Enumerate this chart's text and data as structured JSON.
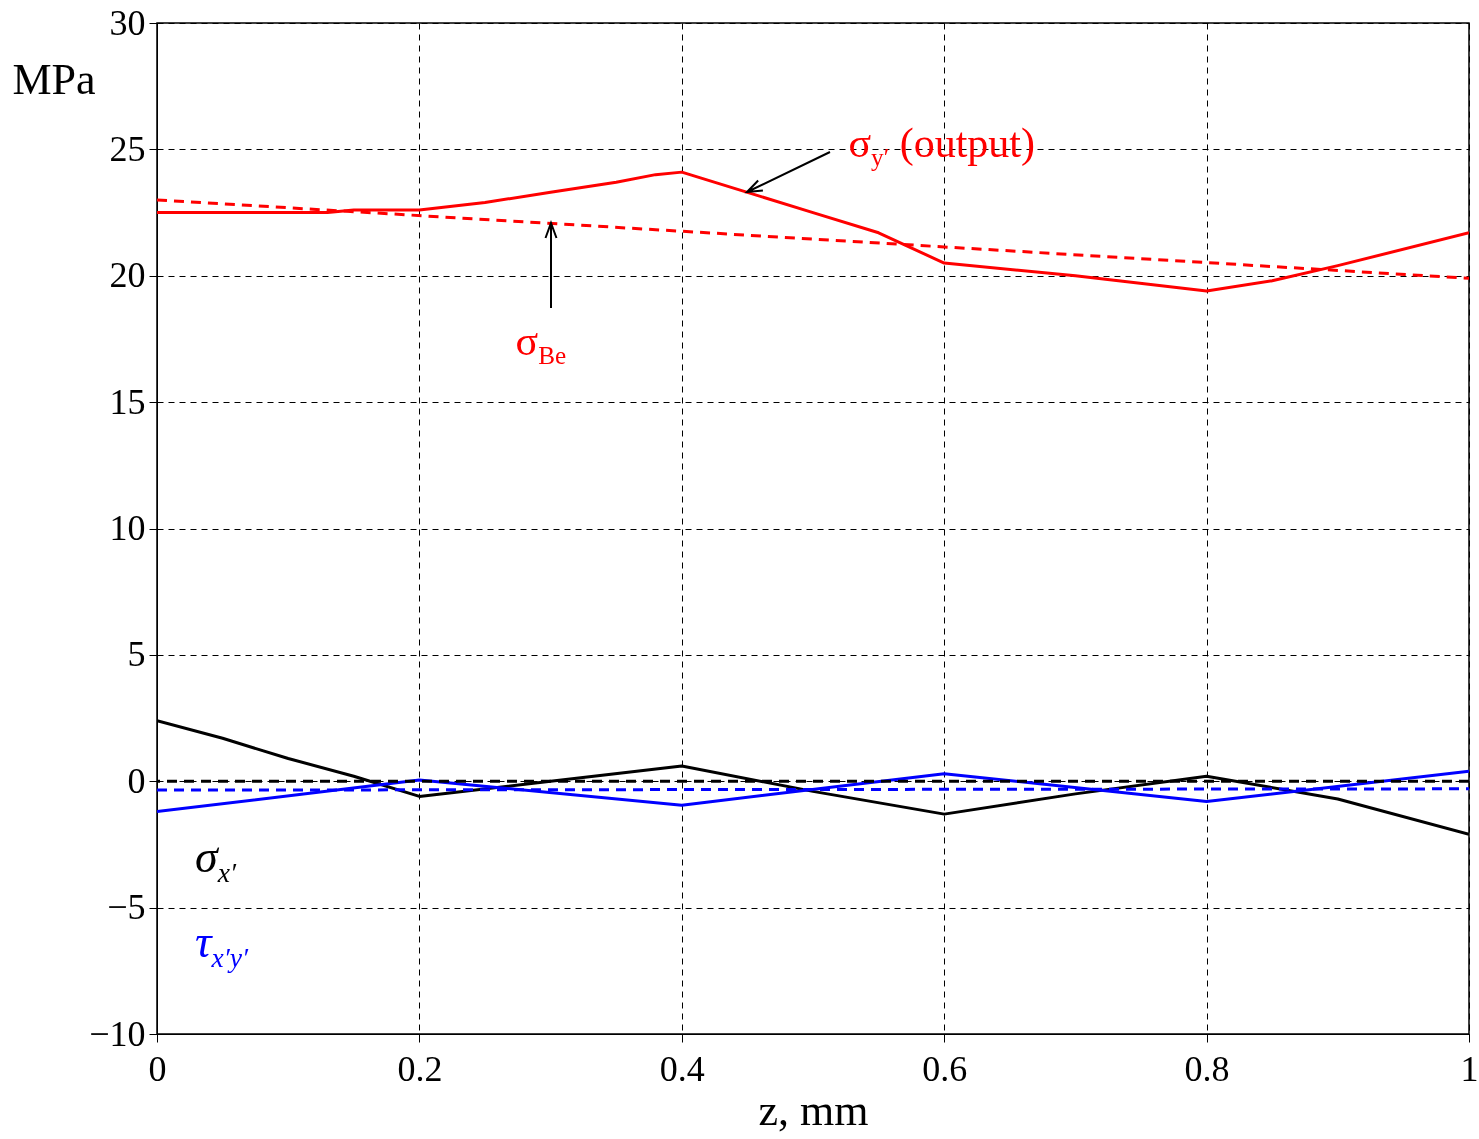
{
  "chart_data": {
    "type": "line",
    "xlabel": "z, mm",
    "ylabel": "MPa",
    "xlim": [
      0,
      1
    ],
    "xticks": [
      0,
      0.2,
      0.4,
      0.6,
      0.8,
      1
    ],
    "ylim": [
      -10,
      30
    ],
    "yticks": [
      -10,
      -5,
      0,
      5,
      10,
      15,
      20,
      25,
      30
    ],
    "grid": true,
    "legend": "bottom left",
    "marker": "none",
    "series": [
      {
        "color": "#ff0000",
        "line_style": "solid",
        "x": [
          0,
          0.05,
          0.1,
          0.13,
          0.15,
          0.2,
          0.25,
          0.3,
          0.35,
          0.38,
          0.4,
          0.5,
          0.55,
          0.6,
          0.7,
          0.8,
          0.85,
          0.9,
          1
        ],
        "values": [
          22.5,
          22.5,
          22.5,
          22.5,
          22.6,
          22.6,
          22.9,
          23.3,
          23.7,
          24.0,
          24.1,
          22.5,
          21.7,
          20.5,
          20.0,
          19.4,
          19.8,
          20.4,
          21.7
        ]
      },
      {
        "color": "#ff0000",
        "line_style": "dashed",
        "x": [
          0,
          1
        ],
        "values": [
          23.0,
          19.9
        ]
      },
      {
        "name": "σ$_{x′}$",
        "color": "#000000",
        "line_style": "solid",
        "x": [
          0,
          0.05,
          0.1,
          0.15,
          0.2,
          0.3,
          0.4,
          0.5,
          0.6,
          0.7,
          0.8,
          0.9,
          1
        ],
        "values": [
          2.4,
          1.7,
          0.9,
          0.2,
          -0.6,
          0,
          0.6,
          -0.4,
          -1.3,
          -0.5,
          0.2,
          -0.7,
          -2.1
        ]
      },
      {
        "name": "τ$_{x′y′}$",
        "color": "#0000ff",
        "line_style": "solid",
        "x": [
          0,
          0.2,
          0.4,
          0.6,
          0.8,
          1
        ],
        "values": [
          -1.2,
          0.05,
          -0.95,
          0.3,
          -0.8,
          0.4
        ]
      },
      {
        "color": "#0000ff",
        "line_style": "dashed",
        "x": [
          0,
          1
        ],
        "values": [
          -0.35,
          -0.3
        ]
      }
    ],
    "ref_lines": [
      {
        "axis": "y",
        "value": 0,
        "color": "#000000",
        "line_style": "dashed"
      }
    ],
    "annotations": [
      {
        "text": "σ$_{y′}$ (output)",
        "x": 0.45,
        "y": 23.3
      },
      {
        "text": "σ$_{Be}$",
        "x": 0.3,
        "y": 22.1
      }
    ]
  }
}
